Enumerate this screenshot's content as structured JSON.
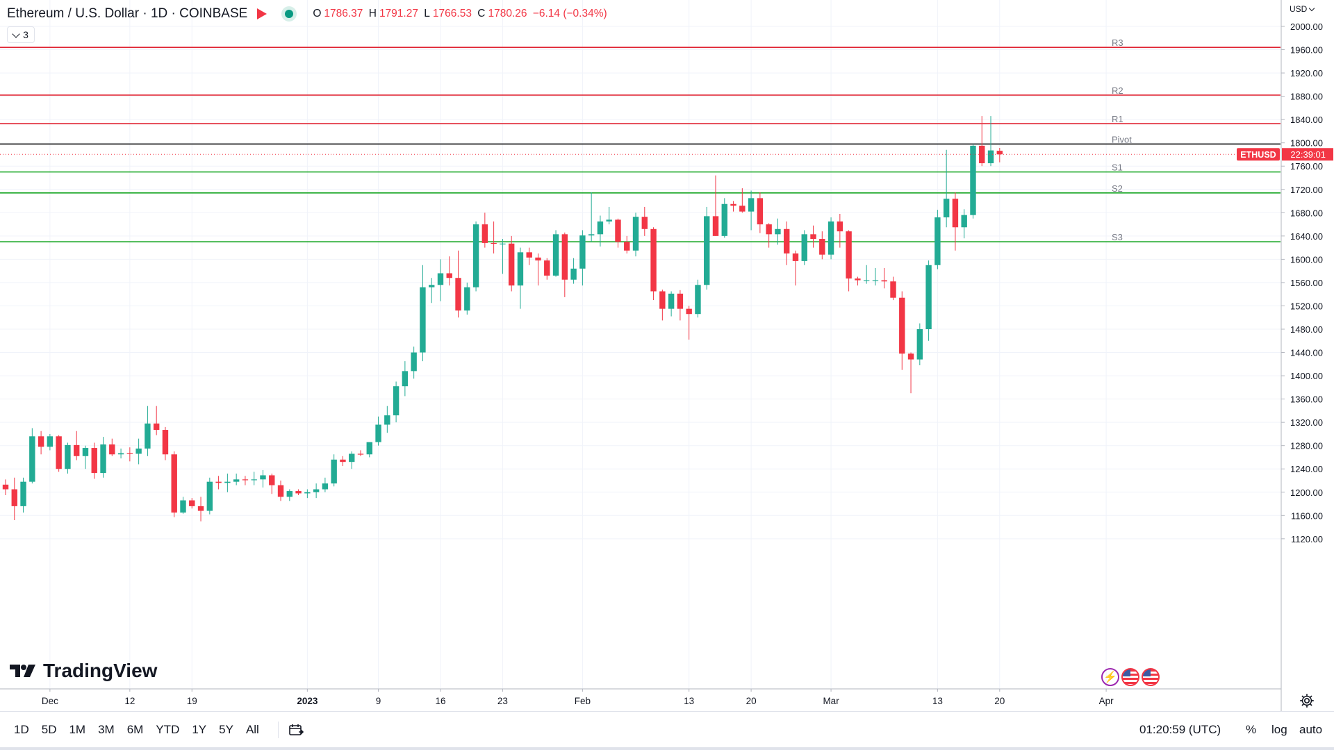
{
  "header": {
    "symbol_title": "Ethereum / U.S. Dollar · 1D · COINBASE",
    "ohlc": {
      "o_label": "O",
      "o_value": "1786.37",
      "h_label": "H",
      "h_value": "1791.27",
      "l_label": "L",
      "l_value": "1766.53",
      "c_label": "C",
      "c_value": "1780.26",
      "change": "−6.14 (−0.34%)"
    },
    "collapse_count": "3",
    "currency": "USD"
  },
  "colors": {
    "up": "#22ab94",
    "down": "#f23645",
    "pivot": "#000000",
    "resistance": "#e02433",
    "support": "#14a520",
    "dot": "#089981"
  },
  "chart_data": {
    "type": "candlestick",
    "y_axis": {
      "range": [
        1085,
        2025
      ],
      "ticks": [
        2000,
        1960,
        1920,
        1880,
        1840,
        1800,
        1760,
        1720,
        1680,
        1640,
        1600,
        1560,
        1520,
        1480,
        1440,
        1400,
        1360,
        1320,
        1280,
        1240,
        1200,
        1160,
        1120
      ],
      "tick_labels": [
        "2000.00",
        "1960.00",
        "1920.00",
        "1880.00",
        "1840.00",
        "1800.00",
        "1760.00",
        "1720.00",
        "1680.00",
        "1640.00",
        "1600.00",
        "1560.00",
        "1520.00",
        "1480.00",
        "1440.00",
        "1400.00",
        "1360.00",
        "1320.00",
        "1280.00",
        "1240.00",
        "1200.00",
        "1160.00",
        "1120.00"
      ]
    },
    "x_axis": {
      "labels": [
        {
          "text": "Dec",
          "date": "2022-12-03"
        },
        {
          "text": "12",
          "date": "2022-12-12"
        },
        {
          "text": "19",
          "date": "2022-12-19"
        },
        {
          "text": "2023",
          "date": "2023-01-01",
          "bold": true
        },
        {
          "text": "9",
          "date": "2023-01-09"
        },
        {
          "text": "16",
          "date": "2023-01-16"
        },
        {
          "text": "23",
          "date": "2023-01-23"
        },
        {
          "text": "Feb",
          "date": "2023-02-01"
        },
        {
          "text": "13",
          "date": "2023-02-13"
        },
        {
          "text": "20",
          "date": "2023-02-20"
        },
        {
          "text": "Mar",
          "date": "2023-03-01"
        },
        {
          "text": "13",
          "date": "2023-03-13"
        },
        {
          "text": "20",
          "date": "2023-03-20"
        },
        {
          "text": "Apr",
          "date": "2023-04-01"
        }
      ]
    },
    "candles": [
      {
        "date": "2022-11-28",
        "o": 1213,
        "h": 1222,
        "l": 1195,
        "c": 1205
      },
      {
        "date": "2022-11-29",
        "o": 1205,
        "h": 1225,
        "l": 1152,
        "c": 1176
      },
      {
        "date": "2022-11-30",
        "o": 1176,
        "h": 1225,
        "l": 1165,
        "c": 1218
      },
      {
        "date": "2022-12-01",
        "o": 1218,
        "h": 1310,
        "l": 1215,
        "c": 1296
      },
      {
        "date": "2022-12-02",
        "o": 1296,
        "h": 1305,
        "l": 1265,
        "c": 1278
      },
      {
        "date": "2022-12-03",
        "o": 1278,
        "h": 1300,
        "l": 1272,
        "c": 1296
      },
      {
        "date": "2022-12-04",
        "o": 1296,
        "h": 1298,
        "l": 1235,
        "c": 1240
      },
      {
        "date": "2022-12-05",
        "o": 1240,
        "h": 1285,
        "l": 1232,
        "c": 1281
      },
      {
        "date": "2022-12-06",
        "o": 1281,
        "h": 1305,
        "l": 1255,
        "c": 1262
      },
      {
        "date": "2022-12-07",
        "o": 1262,
        "h": 1280,
        "l": 1240,
        "c": 1276
      },
      {
        "date": "2022-12-08",
        "o": 1276,
        "h": 1285,
        "l": 1223,
        "c": 1233
      },
      {
        "date": "2022-12-09",
        "o": 1233,
        "h": 1295,
        "l": 1225,
        "c": 1282
      },
      {
        "date": "2022-12-10",
        "o": 1282,
        "h": 1292,
        "l": 1262,
        "c": 1265
      },
      {
        "date": "2022-12-11",
        "o": 1265,
        "h": 1275,
        "l": 1258,
        "c": 1267
      },
      {
        "date": "2022-12-12",
        "o": 1267,
        "h": 1277,
        "l": 1253,
        "c": 1266
      },
      {
        "date": "2022-12-13",
        "o": 1266,
        "h": 1292,
        "l": 1248,
        "c": 1275
      },
      {
        "date": "2022-12-14",
        "o": 1275,
        "h": 1348,
        "l": 1262,
        "c": 1318
      },
      {
        "date": "2022-12-15",
        "o": 1318,
        "h": 1348,
        "l": 1298,
        "c": 1307
      },
      {
        "date": "2022-12-16",
        "o": 1307,
        "h": 1312,
        "l": 1255,
        "c": 1265
      },
      {
        "date": "2022-12-17",
        "o": 1265,
        "h": 1270,
        "l": 1157,
        "c": 1165
      },
      {
        "date": "2022-12-18",
        "o": 1165,
        "h": 1192,
        "l": 1163,
        "c": 1186
      },
      {
        "date": "2022-12-19",
        "o": 1186,
        "h": 1190,
        "l": 1172,
        "c": 1176
      },
      {
        "date": "2022-12-20",
        "o": 1176,
        "h": 1192,
        "l": 1150,
        "c": 1168
      },
      {
        "date": "2022-12-21",
        "o": 1168,
        "h": 1225,
        "l": 1162,
        "c": 1218
      },
      {
        "date": "2022-12-22",
        "o": 1218,
        "h": 1228,
        "l": 1205,
        "c": 1216
      },
      {
        "date": "2022-12-23",
        "o": 1216,
        "h": 1232,
        "l": 1200,
        "c": 1218
      },
      {
        "date": "2022-12-24",
        "o": 1218,
        "h": 1232,
        "l": 1212,
        "c": 1222
      },
      {
        "date": "2022-12-25",
        "o": 1222,
        "h": 1228,
        "l": 1212,
        "c": 1221
      },
      {
        "date": "2022-12-26",
        "o": 1221,
        "h": 1235,
        "l": 1212,
        "c": 1222
      },
      {
        "date": "2022-12-27",
        "o": 1222,
        "h": 1238,
        "l": 1208,
        "c": 1229
      },
      {
        "date": "2022-12-28",
        "o": 1229,
        "h": 1232,
        "l": 1197,
        "c": 1212
      },
      {
        "date": "2022-12-29",
        "o": 1212,
        "h": 1220,
        "l": 1185,
        "c": 1192
      },
      {
        "date": "2022-12-30",
        "o": 1192,
        "h": 1205,
        "l": 1185,
        "c": 1202
      },
      {
        "date": "2022-12-31",
        "o": 1202,
        "h": 1205,
        "l": 1195,
        "c": 1198
      },
      {
        "date": "2023-01-01",
        "o": 1198,
        "h": 1205,
        "l": 1190,
        "c": 1200
      },
      {
        "date": "2023-01-02",
        "o": 1200,
        "h": 1215,
        "l": 1190,
        "c": 1205
      },
      {
        "date": "2023-01-03",
        "o": 1205,
        "h": 1225,
        "l": 1200,
        "c": 1215
      },
      {
        "date": "2023-01-04",
        "o": 1215,
        "h": 1265,
        "l": 1210,
        "c": 1256
      },
      {
        "date": "2023-01-05",
        "o": 1256,
        "h": 1262,
        "l": 1245,
        "c": 1252
      },
      {
        "date": "2023-01-06",
        "o": 1252,
        "h": 1270,
        "l": 1240,
        "c": 1266
      },
      {
        "date": "2023-01-07",
        "o": 1266,
        "h": 1272,
        "l": 1262,
        "c": 1265
      },
      {
        "date": "2023-01-08",
        "o": 1265,
        "h": 1285,
        "l": 1260,
        "c": 1286
      },
      {
        "date": "2023-01-09",
        "o": 1286,
        "h": 1330,
        "l": 1280,
        "c": 1316
      },
      {
        "date": "2023-01-10",
        "o": 1316,
        "h": 1348,
        "l": 1302,
        "c": 1332
      },
      {
        "date": "2023-01-11",
        "o": 1332,
        "h": 1390,
        "l": 1320,
        "c": 1382
      },
      {
        "date": "2023-01-12",
        "o": 1382,
        "h": 1425,
        "l": 1365,
        "c": 1408
      },
      {
        "date": "2023-01-13",
        "o": 1408,
        "h": 1450,
        "l": 1395,
        "c": 1440
      },
      {
        "date": "2023-01-14",
        "o": 1440,
        "h": 1590,
        "l": 1425,
        "c": 1552
      },
      {
        "date": "2023-01-15",
        "o": 1552,
        "h": 1568,
        "l": 1525,
        "c": 1556
      },
      {
        "date": "2023-01-16",
        "o": 1556,
        "h": 1600,
        "l": 1528,
        "c": 1576
      },
      {
        "date": "2023-01-17",
        "o": 1576,
        "h": 1605,
        "l": 1555,
        "c": 1568
      },
      {
        "date": "2023-01-18",
        "o": 1568,
        "h": 1615,
        "l": 1500,
        "c": 1512
      },
      {
        "date": "2023-01-19",
        "o": 1512,
        "h": 1560,
        "l": 1505,
        "c": 1552
      },
      {
        "date": "2023-01-20",
        "o": 1552,
        "h": 1665,
        "l": 1545,
        "c": 1660
      },
      {
        "date": "2023-01-21",
        "o": 1660,
        "h": 1680,
        "l": 1620,
        "c": 1628
      },
      {
        "date": "2023-01-22",
        "o": 1628,
        "h": 1665,
        "l": 1610,
        "c": 1627
      },
      {
        "date": "2023-01-23",
        "o": 1627,
        "h": 1635,
        "l": 1575,
        "c": 1627
      },
      {
        "date": "2023-01-24",
        "o": 1627,
        "h": 1640,
        "l": 1545,
        "c": 1555
      },
      {
        "date": "2023-01-25",
        "o": 1555,
        "h": 1620,
        "l": 1515,
        "c": 1612
      },
      {
        "date": "2023-01-26",
        "o": 1612,
        "h": 1620,
        "l": 1590,
        "c": 1603
      },
      {
        "date": "2023-01-27",
        "o": 1603,
        "h": 1610,
        "l": 1555,
        "c": 1598
      },
      {
        "date": "2023-01-28",
        "o": 1598,
        "h": 1602,
        "l": 1565,
        "c": 1572
      },
      {
        "date": "2023-01-29",
        "o": 1572,
        "h": 1650,
        "l": 1570,
        "c": 1643
      },
      {
        "date": "2023-01-30",
        "o": 1643,
        "h": 1646,
        "l": 1535,
        "c": 1565
      },
      {
        "date": "2023-01-31",
        "o": 1565,
        "h": 1602,
        "l": 1558,
        "c": 1584
      },
      {
        "date": "2023-02-01",
        "o": 1584,
        "h": 1650,
        "l": 1555,
        "c": 1641
      },
      {
        "date": "2023-02-02",
        "o": 1641,
        "h": 1715,
        "l": 1630,
        "c": 1643
      },
      {
        "date": "2023-02-03",
        "o": 1643,
        "h": 1675,
        "l": 1622,
        "c": 1665
      },
      {
        "date": "2023-02-04",
        "o": 1665,
        "h": 1690,
        "l": 1660,
        "c": 1668
      },
      {
        "date": "2023-02-05",
        "o": 1668,
        "h": 1670,
        "l": 1620,
        "c": 1630
      },
      {
        "date": "2023-02-06",
        "o": 1630,
        "h": 1640,
        "l": 1610,
        "c": 1615
      },
      {
        "date": "2023-02-07",
        "o": 1615,
        "h": 1680,
        "l": 1605,
        "c": 1673
      },
      {
        "date": "2023-02-08",
        "o": 1673,
        "h": 1690,
        "l": 1640,
        "c": 1652
      },
      {
        "date": "2023-02-09",
        "o": 1652,
        "h": 1655,
        "l": 1530,
        "c": 1545
      },
      {
        "date": "2023-02-10",
        "o": 1545,
        "h": 1548,
        "l": 1495,
        "c": 1515
      },
      {
        "date": "2023-02-11",
        "o": 1515,
        "h": 1545,
        "l": 1502,
        "c": 1541
      },
      {
        "date": "2023-02-12",
        "o": 1541,
        "h": 1547,
        "l": 1495,
        "c": 1515
      },
      {
        "date": "2023-02-13",
        "o": 1515,
        "h": 1520,
        "l": 1462,
        "c": 1506
      },
      {
        "date": "2023-02-14",
        "o": 1506,
        "h": 1565,
        "l": 1500,
        "c": 1556
      },
      {
        "date": "2023-02-15",
        "o": 1556,
        "h": 1690,
        "l": 1548,
        "c": 1674
      },
      {
        "date": "2023-02-16",
        "o": 1674,
        "h": 1744,
        "l": 1640,
        "c": 1640
      },
      {
        "date": "2023-02-17",
        "o": 1640,
        "h": 1705,
        "l": 1637,
        "c": 1695
      },
      {
        "date": "2023-02-18",
        "o": 1695,
        "h": 1700,
        "l": 1682,
        "c": 1692
      },
      {
        "date": "2023-02-19",
        "o": 1692,
        "h": 1722,
        "l": 1680,
        "c": 1682
      },
      {
        "date": "2023-02-20",
        "o": 1682,
        "h": 1718,
        "l": 1650,
        "c": 1705
      },
      {
        "date": "2023-02-21",
        "o": 1705,
        "h": 1715,
        "l": 1645,
        "c": 1660
      },
      {
        "date": "2023-02-22",
        "o": 1660,
        "h": 1662,
        "l": 1620,
        "c": 1643
      },
      {
        "date": "2023-02-23",
        "o": 1643,
        "h": 1670,
        "l": 1625,
        "c": 1652
      },
      {
        "date": "2023-02-24",
        "o": 1652,
        "h": 1665,
        "l": 1590,
        "c": 1610
      },
      {
        "date": "2023-02-25",
        "o": 1610,
        "h": 1615,
        "l": 1555,
        "c": 1597
      },
      {
        "date": "2023-02-26",
        "o": 1597,
        "h": 1650,
        "l": 1590,
        "c": 1643
      },
      {
        "date": "2023-02-27",
        "o": 1643,
        "h": 1658,
        "l": 1620,
        "c": 1635
      },
      {
        "date": "2023-02-28",
        "o": 1635,
        "h": 1648,
        "l": 1600,
        "c": 1608
      },
      {
        "date": "2023-03-01",
        "o": 1608,
        "h": 1672,
        "l": 1600,
        "c": 1665
      },
      {
        "date": "2023-03-02",
        "o": 1665,
        "h": 1678,
        "l": 1620,
        "c": 1648
      },
      {
        "date": "2023-03-03",
        "o": 1648,
        "h": 1650,
        "l": 1545,
        "c": 1567
      },
      {
        "date": "2023-03-04",
        "o": 1567,
        "h": 1570,
        "l": 1555,
        "c": 1564
      },
      {
        "date": "2023-03-05",
        "o": 1564,
        "h": 1590,
        "l": 1558,
        "c": 1564
      },
      {
        "date": "2023-03-06",
        "o": 1564,
        "h": 1585,
        "l": 1555,
        "c": 1564
      },
      {
        "date": "2023-03-07",
        "o": 1564,
        "h": 1585,
        "l": 1550,
        "c": 1562
      },
      {
        "date": "2023-03-08",
        "o": 1562,
        "h": 1570,
        "l": 1530,
        "c": 1534
      },
      {
        "date": "2023-03-09",
        "o": 1534,
        "h": 1545,
        "l": 1410,
        "c": 1438
      },
      {
        "date": "2023-03-10",
        "o": 1438,
        "h": 1440,
        "l": 1370,
        "c": 1428
      },
      {
        "date": "2023-03-11",
        "o": 1428,
        "h": 1490,
        "l": 1418,
        "c": 1480
      },
      {
        "date": "2023-03-12",
        "o": 1480,
        "h": 1598,
        "l": 1460,
        "c": 1590
      },
      {
        "date": "2023-03-13",
        "o": 1590,
        "h": 1685,
        "l": 1583,
        "c": 1672
      },
      {
        "date": "2023-03-14",
        "o": 1672,
        "h": 1788,
        "l": 1655,
        "c": 1704
      },
      {
        "date": "2023-03-15",
        "o": 1704,
        "h": 1715,
        "l": 1615,
        "c": 1655
      },
      {
        "date": "2023-03-16",
        "o": 1655,
        "h": 1686,
        "l": 1636,
        "c": 1676
      },
      {
        "date": "2023-03-17",
        "o": 1676,
        "h": 1798,
        "l": 1670,
        "c": 1795
      },
      {
        "date": "2023-03-18",
        "o": 1795,
        "h": 1846,
        "l": 1760,
        "c": 1765
      },
      {
        "date": "2023-03-19",
        "o": 1765,
        "h": 1846,
        "l": 1760,
        "c": 1787
      },
      {
        "date": "2023-03-20",
        "o": 1786.37,
        "h": 1791.27,
        "l": 1766.53,
        "c": 1780.26
      }
    ],
    "levels": [
      {
        "name": "R3",
        "value": 1964,
        "kind": "resistance"
      },
      {
        "name": "R2",
        "value": 1882,
        "kind": "resistance"
      },
      {
        "name": "R1",
        "value": 1833,
        "kind": "resistance"
      },
      {
        "name": "Pivot",
        "value": 1798,
        "kind": "pivot"
      },
      {
        "name": "S1",
        "value": 1750,
        "kind": "support"
      },
      {
        "name": "S2",
        "value": 1714,
        "kind": "support"
      },
      {
        "name": "S3",
        "value": 1630,
        "kind": "support"
      }
    ],
    "last_price": {
      "value": 1780.26,
      "symbol": "ETHUSD",
      "countdown": "22:39:01"
    },
    "grid": true
  },
  "watermark": "TradingView",
  "bottom_bar": {
    "ranges": [
      "1D",
      "5D",
      "1M",
      "3M",
      "6M",
      "YTD",
      "1Y",
      "5Y",
      "All"
    ],
    "clock": "01:20:59 (UTC)",
    "percent": "%",
    "log": "log",
    "auto": "auto"
  }
}
